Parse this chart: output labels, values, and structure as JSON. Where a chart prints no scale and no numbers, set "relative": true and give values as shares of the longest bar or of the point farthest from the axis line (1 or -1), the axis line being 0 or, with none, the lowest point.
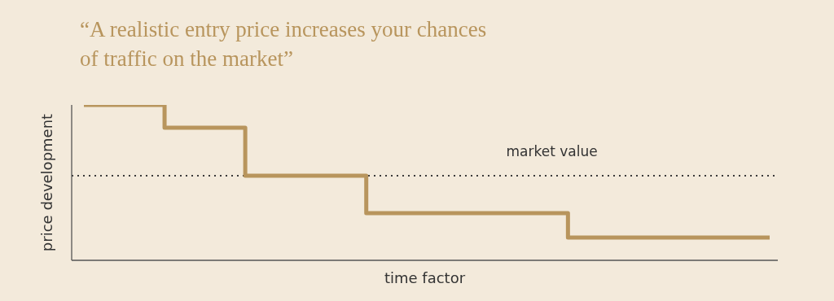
{
  "chart_data": {
    "type": "step",
    "title": "“A realistic entry price increases your chances of traffic on the market”",
    "xlabel": "time factor",
    "ylabel": "price development",
    "relative": true,
    "categories": [
      null,
      null,
      null,
      null,
      null,
      null,
      null,
      null,
      null,
      null,
      null,
      null,
      null,
      null,
      null,
      null,
      null,
      null
    ],
    "series": [
      {
        "color": "#b8955d",
        "values": [
          1,
          1,
          0.853,
          0.853,
          0.545,
          0.545,
          0.545,
          0.304,
          0.304,
          0.304,
          0.304,
          0.304,
          0.147,
          0.147,
          0.147,
          0.147,
          0.147,
          0.147
        ]
      }
    ],
    "ref_lines": [
      {
        "axis": "y",
        "value": 0.545,
        "label": "market value",
        "color": "#3a3a3a",
        "line_style": "dotted"
      }
    ],
    "marker": "none",
    "line_style": "solid"
  }
}
